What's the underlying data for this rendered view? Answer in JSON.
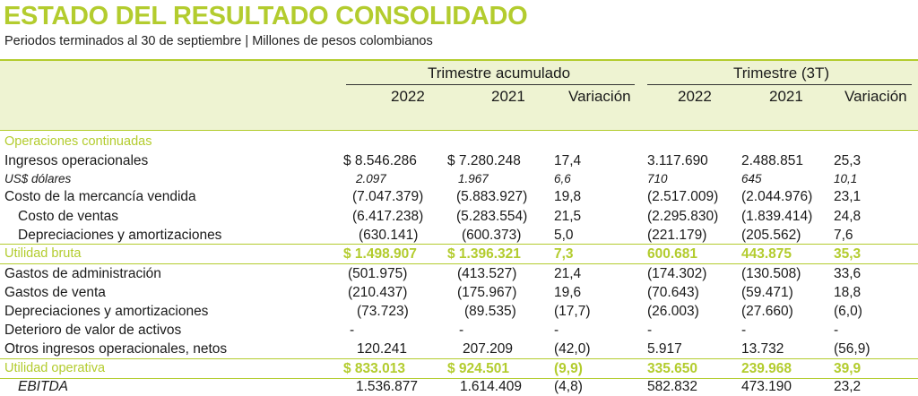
{
  "title": "ESTADO DEL RESULTADO CONSOLIDADO",
  "subtitle": "Periodos terminados al 30 de septiembre | Millones de pesos colombianos",
  "groups": {
    "accumulated": "Trimestre acumulado",
    "quarter": "Trimestre (3T)"
  },
  "columns": [
    "2022",
    "2021",
    "Variación",
    "2022",
    "2021",
    "Variación"
  ],
  "section": "Operaciones continuadas",
  "rows": [
    {
      "label": "Ingresos operacionales",
      "values": [
        "$ 8.546.286",
        "$ 7.280.248",
        "17,4",
        "3.117.690",
        "2.488.851",
        "25,3"
      ]
    },
    {
      "label": "US$ dólares",
      "values": [
        "2.097",
        "1.967",
        "6,6",
        "710",
        "645",
        "10,1"
      ]
    },
    {
      "label": "Costo de la mercancía vendida",
      "values": [
        "(7.047.379)",
        "(5.883.927)",
        "19,8",
        "(2.517.009)",
        "(2.044.976)",
        "23,1"
      ]
    },
    {
      "label": "Costo de ventas",
      "values": [
        "(6.417.238)",
        "(5.283.554)",
        "21,5",
        "(2.295.830)",
        "(1.839.414)",
        "24,8"
      ]
    },
    {
      "label": "Depreciaciones y amortizaciones",
      "values": [
        "(630.141)",
        "(600.373)",
        "5,0",
        "(221.179)",
        "(205.562)",
        "7,6"
      ]
    },
    {
      "label": "Utilidad bruta",
      "values": [
        "$ 1.498.907",
        "$ 1.396.321",
        "7,3",
        "600.681",
        "443.875",
        "35,3"
      ]
    },
    {
      "label": "Gastos de administración",
      "values": [
        "(501.975)",
        "(413.527)",
        "21,4",
        "(174.302)",
        "(130.508)",
        "33,6"
      ]
    },
    {
      "label": "Gastos de venta",
      "values": [
        "(210.437)",
        "(175.967)",
        "19,6",
        "(70.643)",
        "(59.471)",
        "18,8"
      ]
    },
    {
      "label": "Depreciaciones y amortizaciones",
      "values": [
        "(73.723)",
        "(89.535)",
        "(17,7)",
        "(26.003)",
        "(27.660)",
        "(6,0)"
      ]
    },
    {
      "label": "Deterioro de valor de activos",
      "values": [
        "-",
        "-",
        "-",
        "-",
        "-",
        "-"
      ]
    },
    {
      "label": "Otros ingresos operacionales, netos",
      "values": [
        "120.241",
        "207.209",
        "(42,0)",
        "5.917",
        "13.732",
        "(56,9)"
      ]
    },
    {
      "label": "Utilidad operativa",
      "values": [
        "$ 833.013",
        "$ 924.501",
        "(9,9)",
        "335.650",
        "239.968",
        "39,9"
      ]
    },
    {
      "label": "EBITDA",
      "values": [
        "1.536.877",
        "1.614.409",
        "(4,8)",
        "582.832",
        "473.190",
        "23,2"
      ]
    }
  ]
}
